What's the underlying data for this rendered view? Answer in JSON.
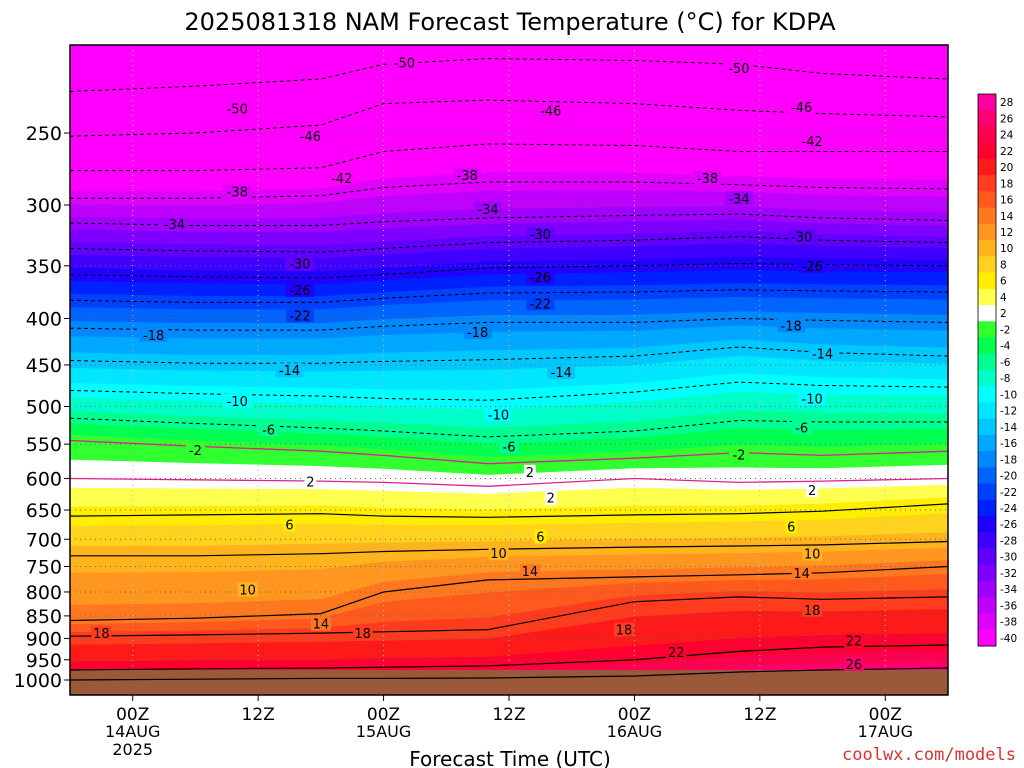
{
  "chart_data": {
    "type": "heatmap",
    "title": "2025081318 NAM Forecast Temperature (°C) for KDPA",
    "xlabel": "Forecast Time (UTC)",
    "ylabel": "",
    "watermark": "coolwx.com/models",
    "x_ticks": [
      {
        "hour": 6,
        "label": "00Z",
        "date": "14AUG",
        "year": "2025"
      },
      {
        "hour": 18,
        "label": "12Z",
        "date": "",
        "year": ""
      },
      {
        "hour": 30,
        "label": "00Z",
        "date": "15AUG",
        "year": ""
      },
      {
        "hour": 42,
        "label": "12Z",
        "date": "",
        "year": ""
      },
      {
        "hour": 54,
        "label": "00Z",
        "date": "16AUG",
        "year": ""
      },
      {
        "hour": 66,
        "label": "12Z",
        "date": "",
        "year": ""
      },
      {
        "hour": 78,
        "label": "00Z",
        "date": "17AUG",
        "year": ""
      }
    ],
    "xlim": [
      0,
      84
    ],
    "y_ticks": [
      250,
      300,
      350,
      400,
      450,
      500,
      550,
      600,
      650,
      700,
      750,
      800,
      850,
      900,
      950,
      1000
    ],
    "ylim": [
      1000,
      200
    ],
    "y_scale": "log-pressure (hPa)",
    "grid": true,
    "colorbar": {
      "position": "right",
      "levels": [
        28,
        26,
        24,
        22,
        20,
        18,
        16,
        14,
        12,
        10,
        8,
        6,
        4,
        2,
        -2,
        -4,
        -6,
        -8,
        -10,
        -12,
        -14,
        -16,
        -18,
        -20,
        -22,
        -24,
        -26,
        -28,
        -30,
        -32,
        -34,
        -36,
        -38,
        -40
      ],
      "colors": [
        "#ff00a0",
        "#ff0070",
        "#ff0050",
        "#ff0030",
        "#ff1a1a",
        "#ff3c1e",
        "#ff5a1e",
        "#ff7820",
        "#ff9620",
        "#ffb41e",
        "#ffd21e",
        "#ffee00",
        "#ffff50",
        "#ffffff",
        "#30ff30",
        "#00ff50",
        "#00ff90",
        "#00ffc8",
        "#00ffff",
        "#00e6ff",
        "#00c8ff",
        "#00a8ff",
        "#0088ff",
        "#0064ff",
        "#0040ff",
        "#0020ff",
        "#2000ff",
        "#4000ff",
        "#6000ff",
        "#8000ff",
        "#a000ff",
        "#c000ff",
        "#e000ff",
        "#ff00ff"
      ]
    },
    "surface_color": "#9a5a3a",
    "series": [
      {
        "name": "-50",
        "x": [
          0,
          12,
          24,
          30,
          40,
          54,
          64,
          72,
          84
        ],
        "y": [
          225,
          222,
          218,
          210,
          207,
          208,
          210,
          215,
          218
        ]
      },
      {
        "name": "-46",
        "x": [
          0,
          12,
          24,
          30,
          40,
          54,
          64,
          72,
          84
        ],
        "y": [
          252,
          250,
          245,
          232,
          230,
          232,
          236,
          238,
          240
        ]
      },
      {
        "name": "-42",
        "x": [
          0,
          12,
          24,
          30,
          40,
          54,
          64,
          72,
          84
        ],
        "y": [
          275,
          275,
          273,
          262,
          257,
          258,
          262,
          262,
          262
        ]
      },
      {
        "name": "-38",
        "x": [
          0,
          12,
          24,
          30,
          40,
          54,
          64,
          72,
          84
        ],
        "y": [
          295,
          295,
          293,
          287,
          283,
          283,
          285,
          287,
          288
        ]
      },
      {
        "name": "-34",
        "x": [
          0,
          12,
          24,
          30,
          40,
          54,
          64,
          72,
          84
        ],
        "y": [
          314,
          316,
          316,
          313,
          310,
          308,
          307,
          310,
          312
        ]
      },
      {
        "name": "-30",
        "x": [
          0,
          12,
          24,
          30,
          40,
          54,
          64,
          72,
          84
        ],
        "y": [
          335,
          337,
          338,
          335,
          330,
          328,
          325,
          328,
          330
        ]
      },
      {
        "name": "-26",
        "x": [
          0,
          12,
          24,
          30,
          40,
          54,
          64,
          72,
          84
        ],
        "y": [
          358,
          360,
          361,
          358,
          352,
          350,
          348,
          349,
          350
        ]
      },
      {
        "name": "-22",
        "x": [
          0,
          12,
          24,
          30,
          40,
          54,
          64,
          72,
          84
        ],
        "y": [
          382,
          384,
          384,
          380,
          375,
          374,
          372,
          373,
          374
        ]
      },
      {
        "name": "-18",
        "x": [
          0,
          12,
          24,
          30,
          40,
          54,
          64,
          72,
          84
        ],
        "y": [
          410,
          412,
          412,
          408,
          404,
          404,
          400,
          402,
          404
        ]
      },
      {
        "name": "-14",
        "x": [
          0,
          12,
          24,
          30,
          40,
          54,
          64,
          72,
          84
        ],
        "y": [
          445,
          448,
          448,
          446,
          444,
          440,
          430,
          436,
          440
        ]
      },
      {
        "name": "-10",
        "x": [
          0,
          12,
          24,
          30,
          40,
          54,
          64,
          72,
          84
        ],
        "y": [
          480,
          484,
          487,
          490,
          492,
          482,
          470,
          474,
          476
        ]
      },
      {
        "name": "-6",
        "x": [
          0,
          12,
          24,
          30,
          40,
          54,
          64,
          72,
          84
        ],
        "y": [
          515,
          522,
          528,
          532,
          540,
          532,
          518,
          520,
          520
        ]
      },
      {
        "name": "-2",
        "x": [
          0,
          12,
          24,
          30,
          40,
          54,
          64,
          72,
          84
        ],
        "y": [
          545,
          553,
          560,
          566,
          578,
          570,
          562,
          566,
          560
        ]
      },
      {
        "name": "2",
        "x": [
          0,
          12,
          24,
          30,
          40,
          54,
          64,
          72,
          84
        ],
        "y": [
          600,
          602,
          604,
          606,
          612,
          600,
          606,
          604,
          600
        ]
      },
      {
        "name": "6",
        "x": [
          0,
          12,
          24,
          30,
          40,
          54,
          64,
          72,
          84
        ],
        "y": [
          660,
          658,
          656,
          660,
          662,
          658,
          656,
          652,
          640
        ]
      },
      {
        "name": "10",
        "x": [
          0,
          12,
          24,
          30,
          40,
          54,
          64,
          72,
          84
        ],
        "y": [
          730,
          730,
          726,
          722,
          718,
          714,
          712,
          710,
          704
        ]
      },
      {
        "name": "14",
        "x": [
          0,
          12,
          24,
          30,
          40,
          54,
          64,
          72,
          84
        ],
        "y": [
          860,
          855,
          845,
          800,
          776,
          770,
          766,
          762,
          750
        ]
      },
      {
        "name": "18",
        "x": [
          0,
          12,
          24,
          30,
          40,
          54,
          64,
          72,
          84
        ],
        "y": [
          895,
          892,
          888,
          885,
          880,
          820,
          810,
          815,
          810
        ]
      },
      {
        "name": "22",
        "x": [
          0,
          12,
          24,
          30,
          40,
          54,
          64,
          72,
          84
        ],
        "y": [
          975,
          972,
          970,
          968,
          965,
          950,
          930,
          920,
          915
        ]
      },
      {
        "name": "26",
        "x": [
          0,
          12,
          24,
          30,
          40,
          54,
          64,
          72,
          84
        ],
        "y": [
          1000,
          998,
          996,
          996,
          995,
          990,
          980,
          975,
          970
        ]
      }
    ],
    "labels": [
      {
        "text": "-50",
        "x": 32,
        "y": 209
      },
      {
        "text": "-50",
        "x": 16,
        "y": 235
      },
      {
        "text": "-50",
        "x": 64,
        "y": 212
      },
      {
        "text": "-46",
        "x": 46,
        "y": 236
      },
      {
        "text": "-46",
        "x": 23,
        "y": 252
      },
      {
        "text": "-46",
        "x": 70,
        "y": 234
      },
      {
        "text": "-42",
        "x": 26,
        "y": 280
      },
      {
        "text": "-42",
        "x": 71,
        "y": 255
      },
      {
        "text": "-38",
        "x": 16,
        "y": 290
      },
      {
        "text": "-38",
        "x": 38,
        "y": 278
      },
      {
        "text": "-38",
        "x": 61,
        "y": 280
      },
      {
        "text": "-34",
        "x": 10,
        "y": 315
      },
      {
        "text": "-34",
        "x": 40,
        "y": 303
      },
      {
        "text": "-34",
        "x": 64,
        "y": 295
      },
      {
        "text": "-30",
        "x": 22,
        "y": 348
      },
      {
        "text": "-30",
        "x": 45,
        "y": 323
      },
      {
        "text": "-30",
        "x": 70,
        "y": 325
      },
      {
        "text": "-26",
        "x": 22,
        "y": 372
      },
      {
        "text": "-26",
        "x": 45,
        "y": 360
      },
      {
        "text": "-26",
        "x": 71,
        "y": 350
      },
      {
        "text": "-22",
        "x": 22,
        "y": 397
      },
      {
        "text": "-22",
        "x": 45,
        "y": 385
      },
      {
        "text": "-18",
        "x": 8,
        "y": 417
      },
      {
        "text": "-18",
        "x": 39,
        "y": 414
      },
      {
        "text": "-18",
        "x": 69,
        "y": 407
      },
      {
        "text": "-14",
        "x": 21,
        "y": 456
      },
      {
        "text": "-14",
        "x": 47,
        "y": 458
      },
      {
        "text": "-14",
        "x": 72,
        "y": 437
      },
      {
        "text": "-10",
        "x": 16,
        "y": 493
      },
      {
        "text": "-10",
        "x": 41,
        "y": 510
      },
      {
        "text": "-10",
        "x": 71,
        "y": 490
      },
      {
        "text": "-6",
        "x": 19,
        "y": 530
      },
      {
        "text": "-6",
        "x": 42,
        "y": 553
      },
      {
        "text": "-6",
        "x": 70,
        "y": 527
      },
      {
        "text": "-2",
        "x": 12,
        "y": 558
      },
      {
        "text": "-2",
        "x": 64,
        "y": 565
      },
      {
        "text": "2",
        "x": 23,
        "y": 605
      },
      {
        "text": "2",
        "x": 44,
        "y": 590
      },
      {
        "text": "2",
        "x": 46,
        "y": 630
      },
      {
        "text": "2",
        "x": 71,
        "y": 618
      },
      {
        "text": "6",
        "x": 21,
        "y": 674
      },
      {
        "text": "6",
        "x": 45,
        "y": 695
      },
      {
        "text": "6",
        "x": 69,
        "y": 678
      },
      {
        "text": "10",
        "x": 41,
        "y": 725
      },
      {
        "text": "10",
        "x": 17,
        "y": 795
      },
      {
        "text": "10",
        "x": 71,
        "y": 726
      },
      {
        "text": "14",
        "x": 44,
        "y": 759
      },
      {
        "text": "14",
        "x": 24,
        "y": 867
      },
      {
        "text": "14",
        "x": 70,
        "y": 762
      },
      {
        "text": "18",
        "x": 3,
        "y": 888
      },
      {
        "text": "18",
        "x": 28,
        "y": 888
      },
      {
        "text": "18",
        "x": 53,
        "y": 880
      },
      {
        "text": "18",
        "x": 71,
        "y": 837
      },
      {
        "text": "22",
        "x": 58,
        "y": 932
      },
      {
        "text": "22",
        "x": 75,
        "y": 905
      },
      {
        "text": "26",
        "x": 75,
        "y": 960
      }
    ]
  }
}
